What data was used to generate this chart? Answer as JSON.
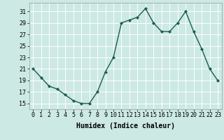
{
  "x": [
    0,
    1,
    2,
    3,
    4,
    5,
    6,
    7,
    8,
    9,
    10,
    11,
    12,
    13,
    14,
    15,
    16,
    17,
    18,
    19,
    20,
    21,
    22,
    23
  ],
  "y": [
    21,
    19.5,
    18,
    17.5,
    16.5,
    15.5,
    15,
    15,
    17,
    20.5,
    23,
    29,
    29.5,
    30,
    31.5,
    29,
    27.5,
    27.5,
    29,
    31,
    27.5,
    24.5,
    21,
    19
  ],
  "line_color": "#1a5c52",
  "marker": "D",
  "marker_size": 2,
  "bg_color": "#cce9e4",
  "grid_color": "#ffffff",
  "xlabel": "Humidex (Indice chaleur)",
  "xlabel_fontsize": 7,
  "yticks": [
    15,
    17,
    19,
    21,
    23,
    25,
    27,
    29,
    31
  ],
  "xtick_labels": [
    "0",
    "1",
    "2",
    "3",
    "4",
    "5",
    "6",
    "7",
    "8",
    "9",
    "1011",
    "1213",
    "1415",
    "1617",
    "1819",
    "2021",
    "2223"
  ],
  "xlim": [
    -0.5,
    23.5
  ],
  "ylim": [
    14.0,
    32.5
  ],
  "tick_fontsize": 6,
  "line_width": 1.0
}
